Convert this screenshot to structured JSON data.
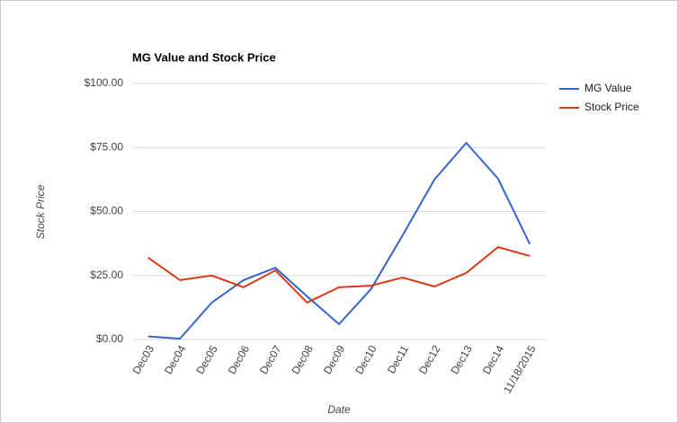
{
  "chart_data": {
    "type": "line",
    "title": "MG Value and Stock Price",
    "x_label": "Date",
    "y_label": "Stock Price",
    "categories": [
      "Dec03",
      "Dec04",
      "Dec05",
      "Dec06",
      "Dec07",
      "Dec08",
      "Dec09",
      "Dec10",
      "Dec11",
      "Dec12",
      "Dec13",
      "Dec14",
      "11/18/2015"
    ],
    "series": [
      {
        "name": "MG Value",
        "color": "#3366cc",
        "values": [
          1.2,
          0.3,
          14.4,
          23.2,
          28,
          16.8,
          6,
          19.6,
          40.7,
          62.5,
          76.8,
          62.8,
          37.2
        ]
      },
      {
        "name": "Stock Price",
        "color": "#dc3912",
        "values": [
          32,
          23.2,
          25,
          20.4,
          27,
          14.4,
          20.4,
          21,
          24.2,
          20.7,
          26,
          36.1,
          32.6
        ]
      }
    ],
    "ylim": [
      0,
      100
    ],
    "yticks": [
      {
        "value": 0,
        "label": "$0.00"
      },
      {
        "value": 25,
        "label": "$25.00"
      },
      {
        "value": 50,
        "label": "$50.00"
      },
      {
        "value": 75,
        "label": "$75.00"
      },
      {
        "value": 100,
        "label": "$100.00"
      }
    ],
    "grid": true,
    "legend": "right"
  }
}
